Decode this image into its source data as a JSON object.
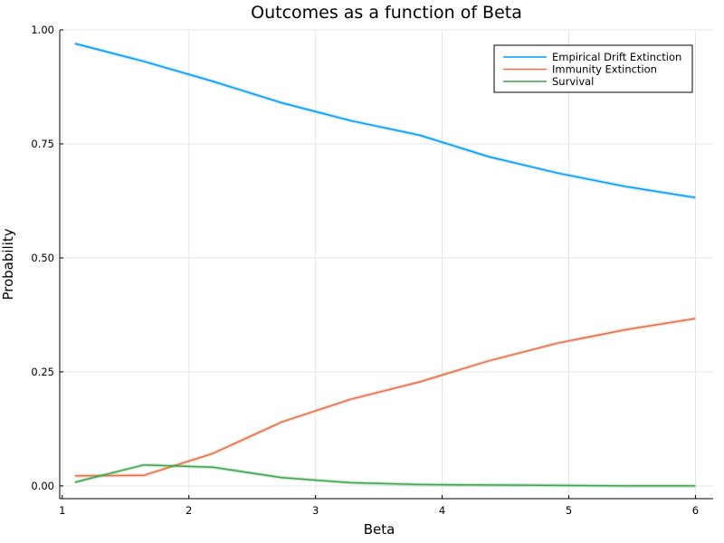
{
  "chart_data": {
    "type": "line",
    "title": "Outcomes as a function of Beta",
    "xlabel": "Beta",
    "ylabel": "Probability",
    "xlim": [
      0.98,
      6.14
    ],
    "ylim": [
      -0.028,
      1.0
    ],
    "xticks": [
      1,
      2,
      3,
      4,
      5,
      6
    ],
    "xtick_labels": [
      "1",
      "2",
      "3",
      "4",
      "5",
      "6"
    ],
    "yticks": [
      0,
      0.25,
      0.5,
      0.75,
      1.0
    ],
    "ytick_labels": [
      "0.00",
      "0.25",
      "0.50",
      "0.75",
      "1.00"
    ],
    "grid": true,
    "legend_position": "top-right",
    "x": [
      1.1,
      1.644,
      2.189,
      2.733,
      3.278,
      3.822,
      4.367,
      4.911,
      5.456,
      6.0
    ],
    "series": [
      {
        "name": "Empirical Drift Extinction",
        "color": "#009af9",
        "values": [
          0.97,
          0.931,
          0.887,
          0.84,
          0.801,
          0.769,
          0.722,
          0.686,
          0.656,
          0.632
        ]
      },
      {
        "name": "Immunity Extinction",
        "color": "#e26f46",
        "values": [
          0.022,
          0.023,
          0.071,
          0.14,
          0.19,
          0.228,
          0.274,
          0.313,
          0.343,
          0.367
        ]
      },
      {
        "name": "Survival",
        "color": "#3da44d",
        "values": [
          0.008,
          0.046,
          0.041,
          0.018,
          0.007,
          0.003,
          0.002,
          0.001,
          0.0,
          0.0
        ]
      }
    ]
  }
}
